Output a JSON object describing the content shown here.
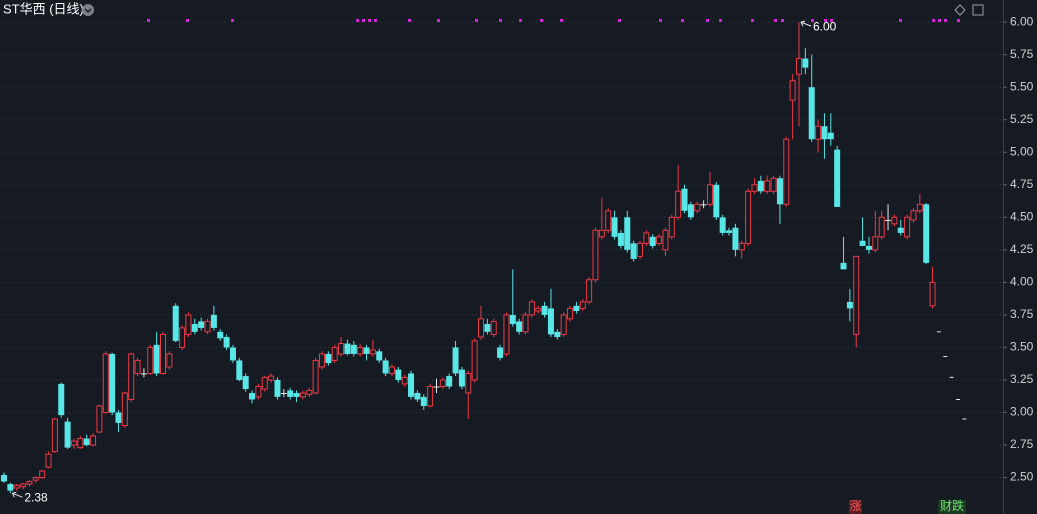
{
  "chart_data": {
    "type": "candlestick",
    "title": "ST华西 (日线)",
    "ylim": [
      2.22,
      6.17
    ],
    "yticks": [
      {
        "value": 2.5,
        "label": "2.50"
      },
      2.75,
      {
        "value": 3.0,
        "label": "3.00"
      },
      3.25,
      {
        "value": 3.5,
        "label": "3.50"
      },
      3.75,
      {
        "value": 4.0,
        "label": "4.00"
      },
      4.25,
      {
        "value": 4.5,
        "label": "4.50"
      },
      4.75,
      {
        "value": 5.0,
        "label": "5.00"
      },
      5.25,
      {
        "value": 5.5,
        "label": "5.50"
      },
      5.75,
      {
        "value": 6.0,
        "label": "6.00"
      }
    ],
    "grid": true,
    "up_color": "#ee3a46",
    "down_color": "#58e6e6",
    "flat_color": "#e8e8e8",
    "ohlc": [
      [
        2.52,
        2.54,
        2.46,
        2.47
      ],
      [
        2.45,
        2.46,
        2.38,
        2.4
      ],
      [
        2.42,
        2.45,
        2.4,
        2.44
      ],
      [
        2.43,
        2.46,
        2.41,
        2.45
      ],
      [
        2.45,
        2.48,
        2.43,
        2.47
      ],
      [
        2.48,
        2.51,
        2.46,
        2.5
      ],
      [
        2.5,
        2.56,
        2.49,
        2.55
      ],
      [
        2.58,
        2.7,
        2.57,
        2.68
      ],
      [
        2.7,
        2.96,
        2.69,
        2.95
      ],
      [
        3.22,
        3.23,
        2.96,
        2.98
      ],
      [
        2.93,
        2.96,
        2.72,
        2.73
      ],
      [
        2.75,
        2.8,
        2.72,
        2.78
      ],
      [
        2.73,
        2.82,
        2.72,
        2.8
      ],
      [
        2.8,
        2.83,
        2.74,
        2.75
      ],
      [
        2.75,
        2.84,
        2.74,
        2.82
      ],
      [
        2.85,
        3.06,
        2.84,
        3.05
      ],
      [
        3.0,
        3.47,
        2.99,
        3.45
      ],
      [
        3.45,
        3.46,
        2.98,
        3.0
      ],
      [
        3.0,
        3.02,
        2.85,
        2.92
      ],
      [
        2.9,
        3.16,
        2.88,
        3.15
      ],
      [
        3.1,
        3.46,
        3.08,
        3.45
      ],
      [
        3.3,
        3.42,
        3.28,
        3.4
      ],
      [
        3.3,
        3.34,
        3.27,
        3.3
      ],
      [
        3.3,
        3.52,
        3.29,
        3.5
      ],
      [
        3.52,
        3.62,
        3.28,
        3.3
      ],
      [
        3.3,
        3.62,
        3.29,
        3.6
      ],
      [
        3.35,
        3.47,
        3.33,
        3.45
      ],
      [
        3.82,
        3.84,
        3.54,
        3.55
      ],
      [
        3.5,
        3.67,
        3.48,
        3.65
      ],
      [
        3.6,
        3.77,
        3.58,
        3.75
      ],
      [
        3.68,
        3.72,
        3.6,
        3.62
      ],
      [
        3.7,
        3.73,
        3.63,
        3.65
      ],
      [
        3.62,
        3.72,
        3.6,
        3.7
      ],
      [
        3.75,
        3.82,
        3.63,
        3.65
      ],
      [
        3.62,
        3.64,
        3.55,
        3.57
      ],
      [
        3.58,
        3.6,
        3.48,
        3.5
      ],
      [
        3.5,
        3.52,
        3.38,
        3.4
      ],
      [
        3.4,
        3.42,
        3.24,
        3.25
      ],
      [
        3.28,
        3.3,
        3.16,
        3.18
      ],
      [
        3.15,
        3.17,
        3.07,
        3.1
      ],
      [
        3.12,
        3.22,
        3.1,
        3.2
      ],
      [
        3.18,
        3.28,
        3.16,
        3.27
      ],
      [
        3.25,
        3.3,
        3.23,
        3.28
      ],
      [
        3.25,
        3.27,
        3.1,
        3.12
      ],
      [
        3.15,
        3.18,
        3.12,
        3.15
      ],
      [
        3.17,
        3.19,
        3.1,
        3.12
      ],
      [
        3.15,
        3.17,
        3.08,
        3.12
      ],
      [
        3.12,
        3.17,
        3.1,
        3.15
      ],
      [
        3.14,
        3.19,
        3.12,
        3.17
      ],
      [
        3.15,
        3.42,
        3.14,
        3.4
      ],
      [
        3.35,
        3.47,
        3.33,
        3.45
      ],
      [
        3.45,
        3.47,
        3.36,
        3.38
      ],
      [
        3.4,
        3.52,
        3.38,
        3.5
      ],
      [
        3.45,
        3.58,
        3.43,
        3.53
      ],
      [
        3.53,
        3.56,
        3.44,
        3.45
      ],
      [
        3.52,
        3.55,
        3.43,
        3.45
      ],
      [
        3.45,
        3.53,
        3.43,
        3.5
      ],
      [
        3.5,
        3.52,
        3.4,
        3.45
      ],
      [
        3.45,
        3.56,
        3.43,
        3.48
      ],
      [
        3.47,
        3.49,
        3.38,
        3.4
      ],
      [
        3.4,
        3.42,
        3.28,
        3.3
      ],
      [
        3.3,
        3.37,
        3.28,
        3.35
      ],
      [
        3.33,
        3.35,
        3.23,
        3.25
      ],
      [
        3.22,
        3.29,
        3.2,
        3.27
      ],
      [
        3.3,
        3.32,
        3.1,
        3.12
      ],
      [
        3.15,
        3.17,
        3.08,
        3.1
      ],
      [
        3.12,
        3.14,
        3.02,
        3.05
      ],
      [
        3.05,
        3.22,
        3.04,
        3.2
      ],
      [
        3.2,
        3.26,
        3.15,
        3.2
      ],
      [
        3.2,
        3.27,
        3.18,
        3.25
      ],
      [
        3.28,
        3.3,
        3.18,
        3.2
      ],
      [
        3.5,
        3.55,
        3.28,
        3.3
      ],
      [
        3.33,
        3.35,
        3.18,
        3.2
      ],
      [
        3.15,
        3.32,
        2.95,
        3.3
      ],
      [
        3.25,
        3.57,
        3.23,
        3.55
      ],
      [
        3.58,
        3.82,
        3.56,
        3.72
      ],
      [
        3.68,
        3.72,
        3.6,
        3.62
      ],
      [
        3.6,
        3.72,
        3.58,
        3.7
      ],
      [
        3.5,
        3.52,
        3.4,
        3.42
      ],
      [
        3.45,
        3.77,
        3.43,
        3.75
      ],
      [
        3.75,
        4.1,
        3.66,
        3.68
      ],
      [
        3.7,
        3.72,
        3.6,
        3.62
      ],
      [
        3.62,
        3.77,
        3.6,
        3.75
      ],
      [
        3.75,
        3.87,
        3.73,
        3.85
      ],
      [
        3.78,
        3.82,
        3.76,
        3.8
      ],
      [
        3.82,
        3.85,
        3.73,
        3.75
      ],
      [
        3.8,
        3.95,
        3.58,
        3.6
      ],
      [
        3.62,
        3.64,
        3.56,
        3.58
      ],
      [
        3.6,
        3.77,
        3.58,
        3.75
      ],
      [
        3.72,
        3.82,
        3.7,
        3.8
      ],
      [
        3.82,
        3.85,
        3.76,
        3.78
      ],
      [
        3.8,
        3.87,
        3.78,
        3.85
      ],
      [
        3.85,
        4.04,
        3.83,
        4.02
      ],
      [
        4.02,
        4.42,
        4.0,
        4.4
      ],
      [
        4.35,
        4.65,
        4.33,
        4.4
      ],
      [
        4.4,
        4.57,
        4.38,
        4.55
      ],
      [
        4.5,
        4.55,
        4.33,
        4.35
      ],
      [
        4.38,
        4.4,
        4.26,
        4.28
      ],
      [
        4.5,
        4.55,
        4.23,
        4.25
      ],
      [
        4.3,
        4.32,
        4.16,
        4.18
      ],
      [
        4.2,
        4.32,
        4.18,
        4.3
      ],
      [
        4.3,
        4.4,
        4.28,
        4.38
      ],
      [
        4.35,
        4.37,
        4.26,
        4.28
      ],
      [
        4.3,
        4.37,
        4.28,
        4.35
      ],
      [
        4.25,
        4.42,
        4.2,
        4.4
      ],
      [
        4.35,
        4.52,
        4.33,
        4.5
      ],
      [
        4.5,
        4.9,
        4.48,
        4.7
      ],
      [
        4.72,
        4.75,
        4.53,
        4.55
      ],
      [
        4.6,
        4.62,
        4.48,
        4.5
      ],
      [
        4.55,
        4.62,
        4.53,
        4.6
      ],
      [
        4.6,
        4.63,
        4.57,
        4.6
      ],
      [
        4.6,
        4.85,
        4.58,
        4.75
      ],
      [
        4.75,
        4.77,
        4.48,
        4.5
      ],
      [
        4.5,
        4.52,
        4.36,
        4.38
      ],
      [
        4.4,
        4.42,
        4.36,
        4.38
      ],
      [
        4.42,
        4.45,
        4.2,
        4.25
      ],
      [
        4.25,
        4.32,
        4.18,
        4.3
      ],
      [
        4.3,
        4.72,
        4.28,
        4.7
      ],
      [
        4.7,
        4.8,
        4.68,
        4.75
      ],
      [
        4.78,
        4.82,
        4.68,
        4.7
      ],
      [
        4.7,
        4.82,
        4.68,
        4.78
      ],
      [
        4.7,
        4.82,
        4.68,
        4.8
      ],
      [
        4.8,
        4.82,
        4.45,
        4.6
      ],
      [
        4.6,
        5.12,
        4.58,
        5.1
      ],
      [
        5.4,
        5.6,
        5.1,
        5.55
      ],
      [
        5.6,
        6.0,
        5.2,
        5.72
      ],
      [
        5.72,
        5.8,
        5.6,
        5.65
      ],
      [
        5.5,
        5.75,
        5.08,
        5.1
      ],
      [
        5.1,
        5.25,
        5.0,
        5.2
      ],
      [
        5.2,
        5.3,
        4.95,
        5.1
      ],
      [
        5.15,
        5.3,
        5.05,
        5.1
      ],
      [
        5.02,
        5.05,
        4.58,
        4.58
      ],
      [
        4.15,
        4.35,
        4.1,
        4.1
      ],
      [
        3.85,
        3.95,
        3.7,
        3.8
      ],
      [
        3.6,
        4.2,
        3.5,
        4.2
      ],
      [
        4.32,
        4.5,
        4.28,
        4.28
      ],
      [
        4.28,
        4.35,
        4.22,
        4.25
      ],
      [
        4.25,
        4.55,
        4.23,
        4.35
      ],
      [
        4.35,
        4.55,
        4.33,
        4.5
      ],
      [
        4.48,
        4.6,
        4.4,
        4.48
      ],
      [
        4.45,
        4.52,
        4.43,
        4.5
      ],
      [
        4.42,
        4.48,
        4.36,
        4.38
      ],
      [
        4.35,
        4.52,
        4.33,
        4.5
      ],
      [
        4.48,
        4.57,
        4.46,
        4.55
      ],
      [
        4.55,
        4.68,
        4.53,
        4.6
      ],
      [
        4.6,
        4.61,
        4.14,
        4.15
      ],
      [
        3.82,
        4.12,
        3.8,
        4.0
      ]
    ],
    "projection": [
      3.62,
      3.43,
      3.27,
      3.1,
      2.95
    ],
    "annotations": [
      {
        "value": 6.0,
        "label": "6.00"
      },
      {
        "value": 2.38,
        "label": "2.38"
      }
    ],
    "badges": [
      "涨",
      "财跌"
    ]
  }
}
